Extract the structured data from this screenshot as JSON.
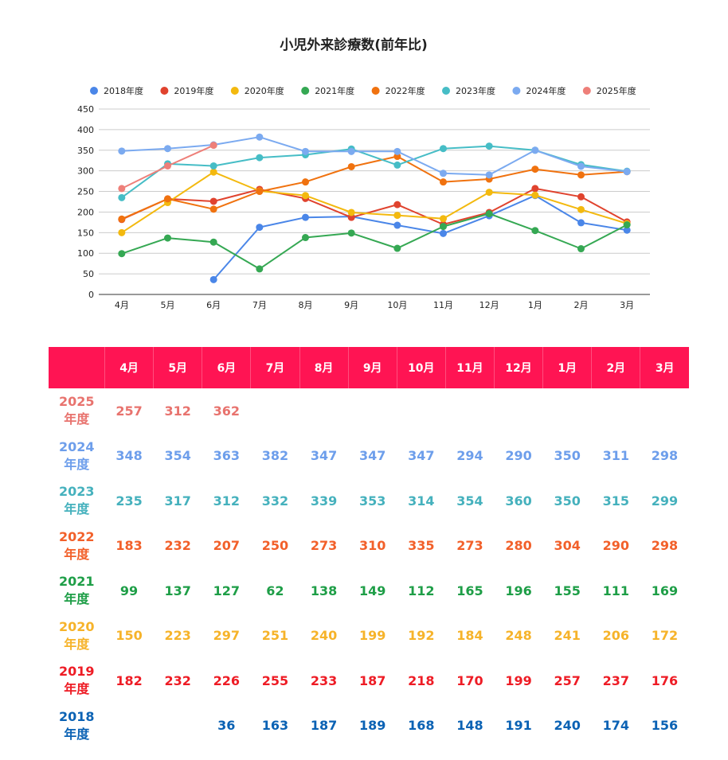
{
  "chart_data": {
    "type": "line",
    "title": "小児外来診療数(前年比)",
    "categories": [
      "4月",
      "5月",
      "6月",
      "7月",
      "8月",
      "9月",
      "10月",
      "11月",
      "12月",
      "1月",
      "2月",
      "3月"
    ],
    "ylim": [
      0,
      450
    ],
    "yticks": [
      0,
      50,
      100,
      150,
      200,
      250,
      300,
      350,
      400,
      450
    ],
    "grid": true,
    "legend_position": "top",
    "series": [
      {
        "name": "2018年度",
        "color": "#4a86e8",
        "values": [
          null,
          null,
          36,
          163,
          187,
          189,
          168,
          148,
          191,
          240,
          174,
          156
        ]
      },
      {
        "name": "2019年度",
        "color": "#e0432e",
        "values": [
          182,
          232,
          226,
          255,
          233,
          187,
          218,
          170,
          199,
          257,
          237,
          176
        ]
      },
      {
        "name": "2020年度",
        "color": "#f3b90f",
        "values": [
          150,
          223,
          297,
          251,
          240,
          199,
          192,
          184,
          248,
          241,
          206,
          172
        ]
      },
      {
        "name": "2021年度",
        "color": "#35a853",
        "values": [
          99,
          137,
          127,
          62,
          138,
          149,
          112,
          165,
          196,
          155,
          111,
          169
        ]
      },
      {
        "name": "2022年度",
        "color": "#f0720f",
        "values": [
          183,
          232,
          207,
          250,
          273,
          310,
          335,
          273,
          280,
          304,
          290,
          298
        ]
      },
      {
        "name": "2023年度",
        "color": "#46bdc6",
        "values": [
          235,
          317,
          312,
          332,
          339,
          353,
          314,
          354,
          360,
          350,
          315,
          299
        ]
      },
      {
        "name": "2024年度",
        "color": "#7baaf0",
        "values": [
          348,
          354,
          363,
          382,
          347,
          347,
          347,
          294,
          290,
          350,
          311,
          298
        ]
      },
      {
        "name": "2025年度",
        "color": "#ee7f79",
        "values": [
          257,
          312,
          362,
          null,
          null,
          null,
          null,
          null,
          null,
          null,
          null,
          null
        ]
      }
    ]
  },
  "table": {
    "corner": "",
    "months": [
      "4月",
      "5月",
      "6月",
      "7月",
      "8月",
      "9月",
      "10月",
      "11月",
      "12月",
      "1月",
      "2月",
      "3月"
    ],
    "header_color": "#ff1453",
    "rows": [
      {
        "year": "2025",
        "suffix": "年度",
        "color": "#e8736e",
        "values": [
          "257",
          "312",
          "362",
          "",
          "",
          "",
          "",
          "",
          "",
          "",
          "",
          ""
        ]
      },
      {
        "year": "2024",
        "suffix": "年度",
        "color": "#6d9eeb",
        "values": [
          "348",
          "354",
          "363",
          "382",
          "347",
          "347",
          "347",
          "294",
          "290",
          "350",
          "311",
          "298"
        ]
      },
      {
        "year": "2023",
        "suffix": "年度",
        "color": "#45b1bd",
        "values": [
          "235",
          "317",
          "312",
          "332",
          "339",
          "353",
          "314",
          "354",
          "360",
          "350",
          "315",
          "299"
        ]
      },
      {
        "year": "2022",
        "suffix": "年度",
        "color": "#f2602a",
        "values": [
          "183",
          "232",
          "207",
          "250",
          "273",
          "310",
          "335",
          "273",
          "280",
          "304",
          "290",
          "298"
        ]
      },
      {
        "year": "2021",
        "suffix": "年度",
        "color": "#1e9e47",
        "values": [
          "99",
          "137",
          "127",
          "62",
          "138",
          "149",
          "112",
          "165",
          "196",
          "155",
          "111",
          "169"
        ]
      },
      {
        "year": "2020",
        "suffix": "年度",
        "color": "#f6b32a",
        "values": [
          "150",
          "223",
          "297",
          "251",
          "240",
          "199",
          "192",
          "184",
          "248",
          "241",
          "206",
          "172"
        ]
      },
      {
        "year": "2019",
        "suffix": "年度",
        "color": "#ee1c25",
        "values": [
          "182",
          "232",
          "226",
          "255",
          "233",
          "187",
          "218",
          "170",
          "199",
          "257",
          "237",
          "176"
        ]
      },
      {
        "year": "2018",
        "suffix": "年度",
        "color": "#0b62b4",
        "values": [
          "",
          "",
          "36",
          "163",
          "187",
          "189",
          "168",
          "148",
          "191",
          "240",
          "174",
          "156"
        ]
      }
    ]
  }
}
